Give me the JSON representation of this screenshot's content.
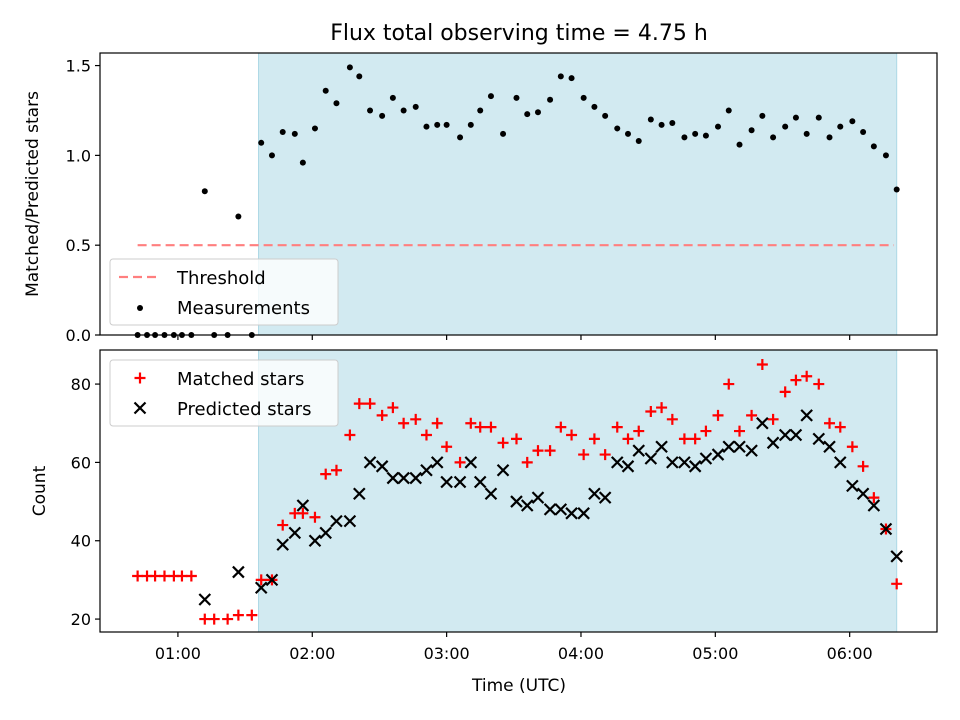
{
  "chart_data": [
    {
      "type": "scatter",
      "title": "Flux total observing time = 4.75 h",
      "xlabel": "",
      "ylabel": "Matched/Predicted stars",
      "x_units": "hours (UTC)",
      "xlim": [
        0.42,
        6.65
      ],
      "ylim": [
        0,
        1.57
      ],
      "yticks": [
        "0.0",
        "0.5",
        "1.0",
        "1.5"
      ],
      "shaded_span": [
        1.6,
        6.35
      ],
      "shaded_color": "#add8e6",
      "legend_position": "lower-left",
      "series": [
        {
          "name": "Threshold",
          "style": "dashed-line",
          "color": "#ff7f7f",
          "x": [
            0.7,
            6.33
          ],
          "y": [
            0.5,
            0.5
          ]
        },
        {
          "name": "Measurements",
          "style": "dot",
          "color": "#000000",
          "x": [
            0.7,
            0.77,
            0.83,
            0.9,
            0.97,
            1.03,
            1.1,
            1.2,
            1.27,
            1.37,
            1.45,
            1.55,
            1.62,
            1.7,
            1.78,
            1.87,
            1.93,
            2.02,
            2.1,
            2.18,
            2.28,
            2.35,
            2.43,
            2.52,
            2.6,
            2.68,
            2.77,
            2.85,
            2.93,
            3.0,
            3.1,
            3.18,
            3.25,
            3.33,
            3.42,
            3.52,
            3.6,
            3.68,
            3.77,
            3.85,
            3.93,
            4.02,
            4.1,
            4.18,
            4.27,
            4.35,
            4.43,
            4.52,
            4.6,
            4.68,
            4.77,
            4.85,
            4.93,
            5.02,
            5.1,
            5.18,
            5.27,
            5.35,
            5.43,
            5.52,
            5.6,
            5.68,
            5.77,
            5.85,
            5.93,
            6.02,
            6.1,
            6.18,
            6.27,
            6.35
          ],
          "y": [
            0,
            0,
            0,
            0,
            0,
            0,
            0,
            0.8,
            0,
            0,
            0.66,
            0,
            1.07,
            1.0,
            1.13,
            1.12,
            0.96,
            1.15,
            1.36,
            1.29,
            1.49,
            1.44,
            1.25,
            1.22,
            1.32,
            1.25,
            1.27,
            1.16,
            1.17,
            1.17,
            1.1,
            1.17,
            1.25,
            1.33,
            1.12,
            1.32,
            1.23,
            1.24,
            1.31,
            1.44,
            1.43,
            1.32,
            1.27,
            1.22,
            1.15,
            1.12,
            1.08,
            1.2,
            1.17,
            1.18,
            1.1,
            1.12,
            1.11,
            1.16,
            1.25,
            1.06,
            1.14,
            1.22,
            1.1,
            1.16,
            1.21,
            1.12,
            1.21,
            1.1,
            1.16,
            1.19,
            1.13,
            1.05,
            1.0,
            0.81
          ]
        }
      ]
    },
    {
      "type": "scatter",
      "title": "",
      "xlabel": "Time (UTC)",
      "ylabel": "Count",
      "x_units": "hours (UTC)",
      "xlim": [
        0.42,
        6.65
      ],
      "ylim": [
        16.7,
        88.7
      ],
      "xticks": [
        {
          "value": 1,
          "label": "01:00"
        },
        {
          "value": 2,
          "label": "02:00"
        },
        {
          "value": 3,
          "label": "03:00"
        },
        {
          "value": 4,
          "label": "04:00"
        },
        {
          "value": 5,
          "label": "05:00"
        },
        {
          "value": 6,
          "label": "06:00"
        }
      ],
      "yticks": [
        "20",
        "40",
        "60",
        "80"
      ],
      "shaded_span": [
        1.6,
        6.35
      ],
      "shaded_color": "#add8e6",
      "legend_position": "upper-left",
      "series": [
        {
          "name": "Matched stars",
          "style": "plus",
          "color": "#ff0000",
          "x": [
            0.7,
            0.77,
            0.83,
            0.9,
            0.97,
            1.03,
            1.1,
            1.2,
            1.27,
            1.37,
            1.45,
            1.55,
            1.62,
            1.7,
            1.78,
            1.87,
            1.93,
            2.02,
            2.1,
            2.18,
            2.28,
            2.35,
            2.43,
            2.52,
            2.6,
            2.68,
            2.77,
            2.85,
            2.93,
            3.0,
            3.1,
            3.18,
            3.25,
            3.33,
            3.42,
            3.52,
            3.6,
            3.68,
            3.77,
            3.85,
            3.93,
            4.02,
            4.1,
            4.18,
            4.27,
            4.35,
            4.43,
            4.52,
            4.6,
            4.68,
            4.77,
            4.85,
            4.93,
            5.02,
            5.1,
            5.18,
            5.27,
            5.35,
            5.43,
            5.52,
            5.6,
            5.68,
            5.77,
            5.85,
            5.93,
            6.02,
            6.1,
            6.18,
            6.27,
            6.35
          ],
          "y": [
            31,
            31,
            31,
            31,
            31,
            31,
            31,
            20,
            20,
            20,
            21,
            21,
            30,
            30,
            44,
            47,
            47,
            46,
            57,
            58,
            67,
            75,
            75,
            72,
            74,
            70,
            71,
            67,
            70,
            64,
            60,
            70,
            69,
            69,
            65,
            66,
            60,
            63,
            63,
            69,
            67,
            62,
            66,
            62,
            69,
            66,
            68,
            73,
            74,
            71,
            66,
            66,
            68,
            72,
            80,
            68,
            72,
            85,
            71,
            78,
            81,
            82,
            80,
            70,
            69,
            64,
            59,
            51,
            43,
            29
          ]
        },
        {
          "name": "Predicted stars",
          "style": "x",
          "color": "#000000",
          "x": [
            1.2,
            1.45,
            1.62,
            1.7,
            1.78,
            1.87,
            1.93,
            2.02,
            2.1,
            2.18,
            2.28,
            2.35,
            2.43,
            2.52,
            2.6,
            2.68,
            2.77,
            2.85,
            2.93,
            3.0,
            3.1,
            3.18,
            3.25,
            3.33,
            3.42,
            3.52,
            3.6,
            3.68,
            3.77,
            3.85,
            3.93,
            4.02,
            4.1,
            4.18,
            4.27,
            4.35,
            4.43,
            4.52,
            4.6,
            4.68,
            4.77,
            4.85,
            4.93,
            5.02,
            5.1,
            5.18,
            5.27,
            5.35,
            5.43,
            5.52,
            5.6,
            5.68,
            5.77,
            5.85,
            5.93,
            6.02,
            6.1,
            6.18,
            6.27,
            6.35
          ],
          "y": [
            25,
            32,
            28,
            30,
            39,
            42,
            49,
            40,
            42,
            45,
            45,
            52,
            60,
            59,
            56,
            56,
            56,
            58,
            60,
            55,
            55,
            60,
            55,
            52,
            58,
            50,
            49,
            51,
            48,
            48,
            47,
            47,
            52,
            51,
            60,
            59,
            63,
            61,
            64,
            60,
            60,
            59,
            61,
            62,
            64,
            64,
            63,
            70,
            65,
            67,
            67,
            72,
            66,
            64,
            60,
            54,
            52,
            49,
            43,
            36
          ]
        }
      ]
    }
  ]
}
